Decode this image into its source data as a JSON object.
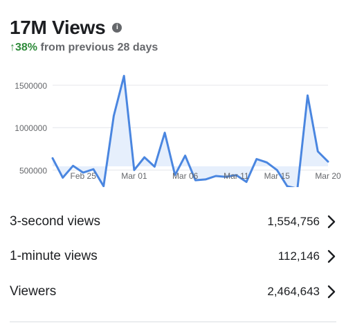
{
  "header": {
    "title": "17M Views",
    "delta": "38%",
    "comparison": "from previous 28 days"
  },
  "chart_data": {
    "type": "area",
    "y_ticks": [
      "1500000",
      "1000000",
      "500000"
    ],
    "y_tick_values": [
      1500000,
      1000000,
      500000
    ],
    "x_tick_labels": [
      "Feb 25",
      "Mar 01",
      "Mar 06",
      "Mar 11",
      "Mar 15",
      "Mar 20"
    ],
    "x_tick_index": [
      3,
      8,
      13,
      18,
      22,
      27
    ],
    "values": [
      640000,
      410000,
      550000,
      470000,
      510000,
      310000,
      1140000,
      1610000,
      500000,
      650000,
      540000,
      940000,
      440000,
      670000,
      380000,
      390000,
      430000,
      420000,
      440000,
      360000,
      630000,
      590000,
      500000,
      310000,
      280000,
      1380000,
      720000,
      600000
    ],
    "ylim": [
      280000,
      1650000
    ],
    "colors": {
      "line": "#4a86e0",
      "fill": "#e6effc",
      "grid": "#e4e6eb",
      "tick": "#65676b"
    },
    "grid": true
  },
  "metrics": [
    {
      "label": "3-second views",
      "value": "1,554,756"
    },
    {
      "label": "1-minute views",
      "value": "112,146"
    },
    {
      "label": "Viewers",
      "value": "2,464,643"
    }
  ]
}
